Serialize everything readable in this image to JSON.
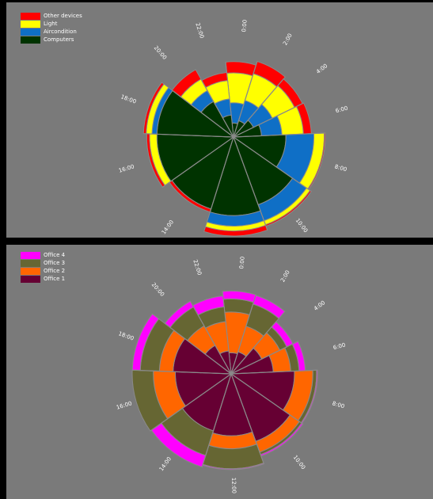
{
  "chart_data": [
    {
      "type": "radial-stacked-bar",
      "categories": [
        "0:00",
        "2:00",
        "4:00",
        "6:00",
        "8:00",
        "10:00",
        "12:00",
        "14:00",
        "16:00",
        "18:00",
        "20:00",
        "22:00"
      ],
      "stack_order": [
        "Computers",
        "Aircondition",
        "Light",
        "Other devices"
      ],
      "legend_order": [
        "Other devices",
        "Light",
        "Aircondition",
        "Computers"
      ],
      "legend_position": "top-left",
      "series": [
        {
          "name": "Computers",
          "color": "#003300",
          "values": [
            2,
            3,
            5,
            8,
            28,
            53,
            63,
            58,
            60,
            60,
            17,
            5
          ]
        },
        {
          "name": "Aircondition",
          "color": "#0f6fc6",
          "values": [
            10,
            12,
            14,
            16,
            38,
            28,
            18,
            0,
            0,
            8,
            12,
            10
          ]
        },
        {
          "name": "Light",
          "color": "#ffff00",
          "values": [
            30,
            30,
            28,
            26,
            18,
            8,
            9,
            0,
            12,
            10,
            16,
            18
          ]
        },
        {
          "name": "Other devices",
          "color": "#ff0000",
          "values": [
            16,
            19,
            13,
            12,
            2,
            3,
            13,
            5,
            5,
            5,
            16,
            10
          ]
        }
      ]
    },
    {
      "type": "radial-stacked-bar",
      "categories": [
        "0:00",
        "2:00",
        "4:00",
        "6:00",
        "8:00",
        "10:00",
        "12:00",
        "14:00",
        "16:00",
        "18:00",
        "20:00",
        "22:00"
      ],
      "stack_order": [
        "Office 1",
        "Office 2",
        "Office 3",
        "Office 4"
      ],
      "legend_order": [
        "Office 4",
        "Office 3",
        "Office 2",
        "Office 1"
      ],
      "legend_position": "top-left",
      "series": [
        {
          "name": "Office 1",
          "color": "#660033",
          "values": [
            5,
            6,
            13,
            20,
            45,
            58,
            43,
            40,
            35,
            38,
            12,
            6
          ]
        },
        {
          "name": "Office 2",
          "color": "#ff6600",
          "values": [
            38,
            22,
            20,
            20,
            30,
            20,
            20,
            0,
            33,
            20,
            22,
            25
          ]
        },
        {
          "name": "Office 3",
          "color": "#666633",
          "values": [
            20,
            32,
            10,
            12,
            7,
            5,
            38,
            42,
            45,
            35,
            32,
            20
          ]
        },
        {
          "name": "Office 4",
          "color": "#ff00ff",
          "values": [
            14,
            16,
            10,
            10,
            2,
            3,
            2,
            25,
            0,
            20,
            12,
            18
          ]
        }
      ]
    }
  ]
}
